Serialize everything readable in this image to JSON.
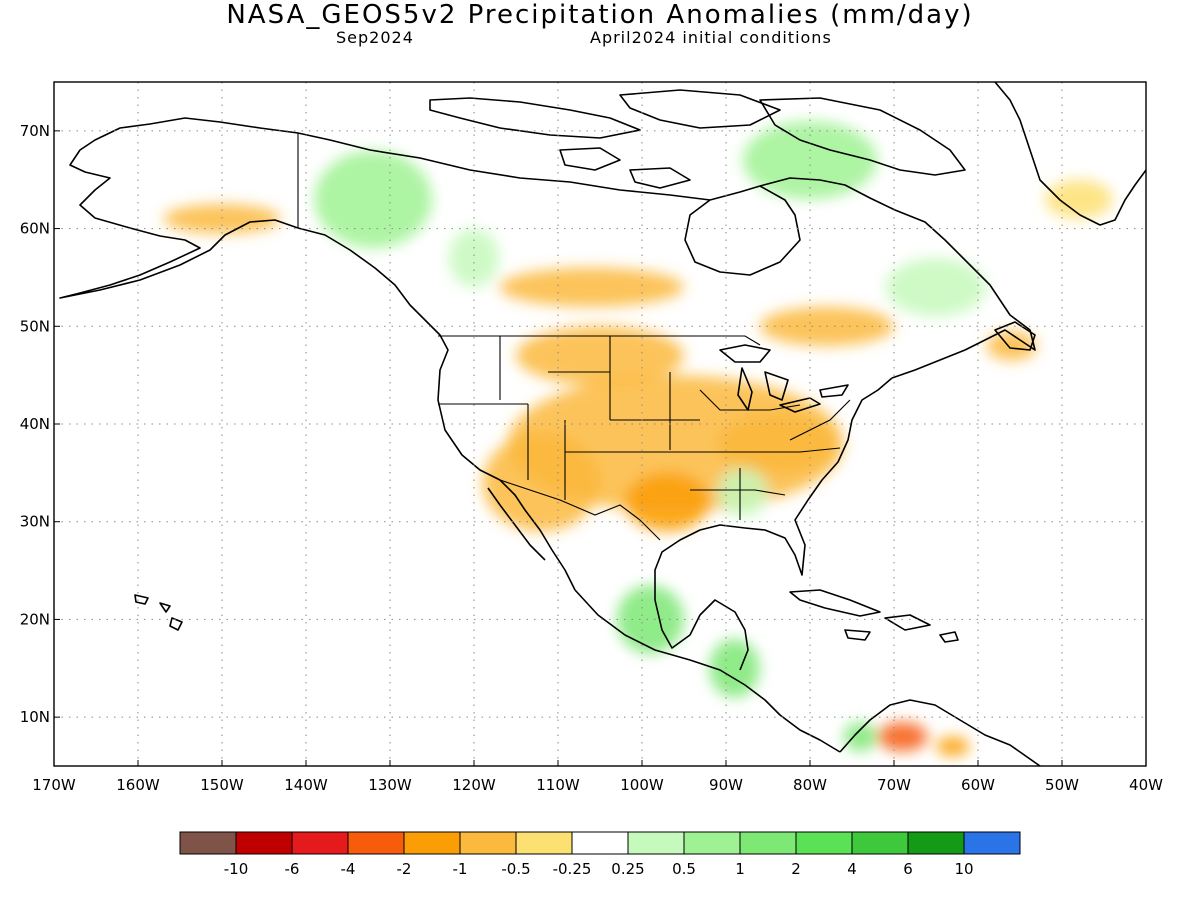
{
  "title": "NASA_GEOS5v2 Precipitation Anomalies (mm/day)",
  "subtitle_left": "Sep2024",
  "subtitle_right": "April2024 initial conditions",
  "map": {
    "lon_range": [
      -170,
      -40
    ],
    "lat_range": [
      5,
      75
    ],
    "lat_ticks": [
      {
        "value": 70,
        "label": "70N"
      },
      {
        "value": 60,
        "label": "60N"
      },
      {
        "value": 50,
        "label": "50N"
      },
      {
        "value": 40,
        "label": "40N"
      },
      {
        "value": 30,
        "label": "30N"
      },
      {
        "value": 20,
        "label": "20N"
      },
      {
        "value": 10,
        "label": "10N"
      }
    ],
    "lon_ticks": [
      {
        "value": -170,
        "label": "170W"
      },
      {
        "value": -160,
        "label": "160W"
      },
      {
        "value": -150,
        "label": "150W"
      },
      {
        "value": -140,
        "label": "140W"
      },
      {
        "value": -130,
        "label": "130W"
      },
      {
        "value": -120,
        "label": "120W"
      },
      {
        "value": -110,
        "label": "110W"
      },
      {
        "value": -100,
        "label": "100W"
      },
      {
        "value": -90,
        "label": "90W"
      },
      {
        "value": -80,
        "label": "80W"
      },
      {
        "value": -70,
        "label": "70W"
      },
      {
        "value": -60,
        "label": "60W"
      },
      {
        "value": -50,
        "label": "50W"
      },
      {
        "value": -40,
        "label": "40W"
      }
    ],
    "grid": "dotted"
  },
  "colorbar": {
    "colors": [
      "#7f5347",
      "#c00000",
      "#e41a1c",
      "#f75c0b",
      "#fb9e06",
      "#fbb93d",
      "#fde072",
      "#ffffff",
      "#c6f9bc",
      "#9ff293",
      "#7de874",
      "#5be155",
      "#3ec93c",
      "#139b17",
      "#2a74e8"
    ],
    "labels": [
      "-10",
      "-6",
      "-4",
      "-2",
      "-1",
      "-0.5",
      "-0.25",
      "0.25",
      "0.5",
      "1",
      "2",
      "4",
      "6",
      "10"
    ]
  },
  "chart_data": {
    "type": "heatmap",
    "title": "NASA_GEOS5v2 Precipitation Anomalies (mm/day)",
    "subtitle": "Sep2024 — April2024 initial conditions",
    "x_range": [
      -170,
      -40
    ],
    "y_range": [
      5,
      75
    ],
    "units": "mm/day",
    "levels": [
      -10,
      -6,
      -4,
      -2,
      -1,
      -0.5,
      -0.25,
      0.25,
      0.5,
      1,
      2,
      4,
      6,
      10
    ],
    "regions": [
      {
        "lon": -96,
        "lat": 38,
        "lon_span": 40,
        "lat_span": 14,
        "value": -0.6
      },
      {
        "lon": -112,
        "lat": 34,
        "lon_span": 14,
        "lat_span": 10,
        "value": -0.6
      },
      {
        "lon": -105,
        "lat": 47,
        "lon_span": 20,
        "lat_span": 6,
        "value": -0.6
      },
      {
        "lon": -106,
        "lat": 54,
        "lon_span": 22,
        "lat_span": 4,
        "value": -0.6
      },
      {
        "lon": -84,
        "lat": 38,
        "lon_span": 14,
        "lat_span": 6,
        "value": -0.8
      },
      {
        "lon": -97,
        "lat": 32,
        "lon_span": 10,
        "lat_span": 6,
        "value": -1.2
      },
      {
        "lon": -88,
        "lat": 33,
        "lon_span": 6,
        "lat_span": 5,
        "value": 0.4
      },
      {
        "lon": -78,
        "lat": 50,
        "lon_span": 16,
        "lat_span": 4,
        "value": -0.6
      },
      {
        "lon": -56,
        "lat": 48,
        "lon_span": 6,
        "lat_span": 3,
        "value": -0.6
      },
      {
        "lon": -150,
        "lat": 61,
        "lon_span": 14,
        "lat_span": 3,
        "value": -0.8
      },
      {
        "lon": -132,
        "lat": 63,
        "lon_span": 14,
        "lat_span": 10,
        "value": 0.6
      },
      {
        "lon": -120,
        "lat": 57,
        "lon_span": 6,
        "lat_span": 6,
        "value": 0.5
      },
      {
        "lon": -80,
        "lat": 67,
        "lon_span": 16,
        "lat_span": 8,
        "value": 0.6
      },
      {
        "lon": -65,
        "lat": 54,
        "lon_span": 12,
        "lat_span": 6,
        "value": 0.5
      },
      {
        "lon": -99,
        "lat": 20,
        "lon_span": 8,
        "lat_span": 7,
        "value": 1.5
      },
      {
        "lon": -89,
        "lat": 15,
        "lon_span": 6,
        "lat_span": 6,
        "value": 1.8
      },
      {
        "lon": -69,
        "lat": 8,
        "lon_span": 6,
        "lat_span": 3,
        "value": -3
      },
      {
        "lon": -63,
        "lat": 7,
        "lon_span": 4,
        "lat_span": 2,
        "value": -1.5
      },
      {
        "lon": -74,
        "lat": 8,
        "lon_span": 4,
        "lat_span": 3,
        "value": 1.5
      },
      {
        "lon": -48,
        "lat": 63,
        "lon_span": 8,
        "lat_span": 4,
        "value": -0.4
      }
    ]
  }
}
